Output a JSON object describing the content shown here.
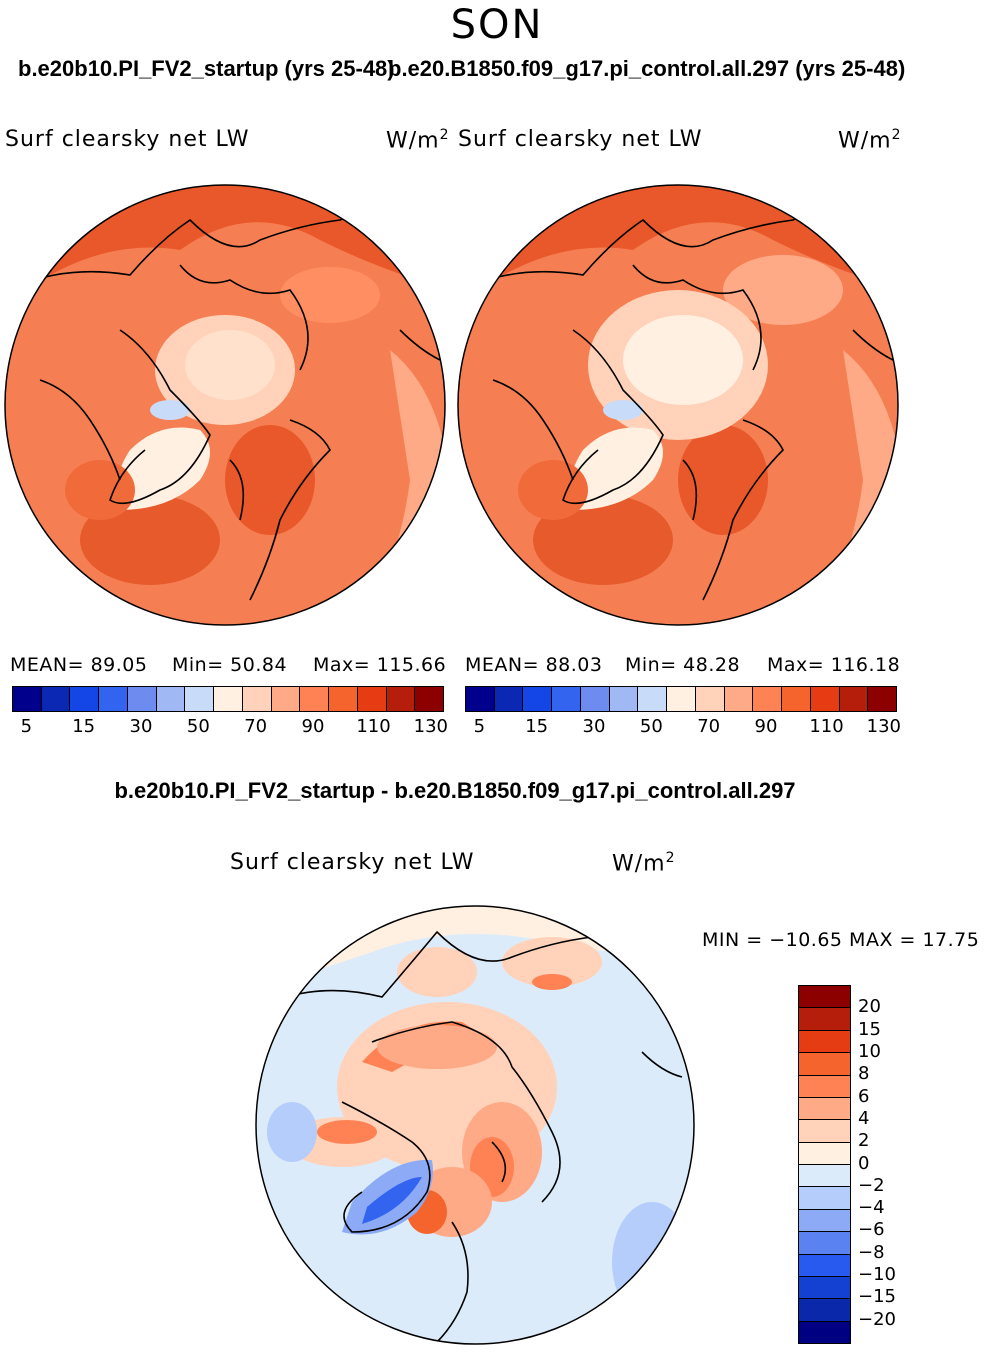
{
  "season": "SON",
  "case_left": "b.e20b10.PI_FV2_startup (yrs 25-48)",
  "case_right": "b.e20.B1850.f09_g17.pi_control.all.297 (yrs 25-48)",
  "panels": [
    {
      "variable": "Surf clearsky net LW",
      "units": "W/m",
      "units_sup": "2",
      "mean": "MEAN=   89.05",
      "min": "Min=   50.84",
      "max": "Max= 115.66"
    },
    {
      "variable": "Surf clearsky net LW",
      "units": "W/m",
      "units_sup": "2",
      "mean": "MEAN=   88.03",
      "min": "Min=   48.28",
      "max": "Max= 116.18"
    }
  ],
  "abs_colorbar": {
    "colors": [
      "#00008c",
      "#0a28b4",
      "#1446e6",
      "#3264f0",
      "#6e8cf0",
      "#a0b9f5",
      "#c8dcfa",
      "#fff0e1",
      "#ffd2b9",
      "#ffaa87",
      "#ff8255",
      "#f5642d",
      "#e63c14",
      "#b41e0a",
      "#8c0000"
    ],
    "labels": [
      "5",
      "15",
      "30",
      "50",
      "70",
      "90",
      "110",
      "130"
    ]
  },
  "diff": {
    "title": "b.e20b10.PI_FV2_startup - b.e20.B1850.f09_g17.pi_control.all.297",
    "variable": "Surf clearsky net LW",
    "units": "W/m",
    "units_sup": "2",
    "minmax": "MIN = −10.65 MAX =   17.75",
    "colors": [
      "#8c0000",
      "#b41e0a",
      "#e63c14",
      "#f5642d",
      "#ff8255",
      "#ffaa87",
      "#ffd2b9",
      "#fff0e1",
      "#dcebfa",
      "#b4cdfa",
      "#8caaf5",
      "#5a82f0",
      "#285af0",
      "#1441d2",
      "#0a28aa",
      "#000082"
    ],
    "labels": [
      "20",
      "15",
      "10",
      "8",
      "6",
      "4",
      "2",
      "0",
      "−2",
      "−4",
      "−6",
      "−8",
      "−10",
      "−15",
      "−20"
    ]
  },
  "map_colors": {
    "base_abs": "#f57f52",
    "inner_abs": "#ffd9c2",
    "ice_abs": "#fff2e6",
    "base_diff": "#dcebfa",
    "warm_diff": "#ff9466",
    "cool_diff": "#3264f0"
  }
}
